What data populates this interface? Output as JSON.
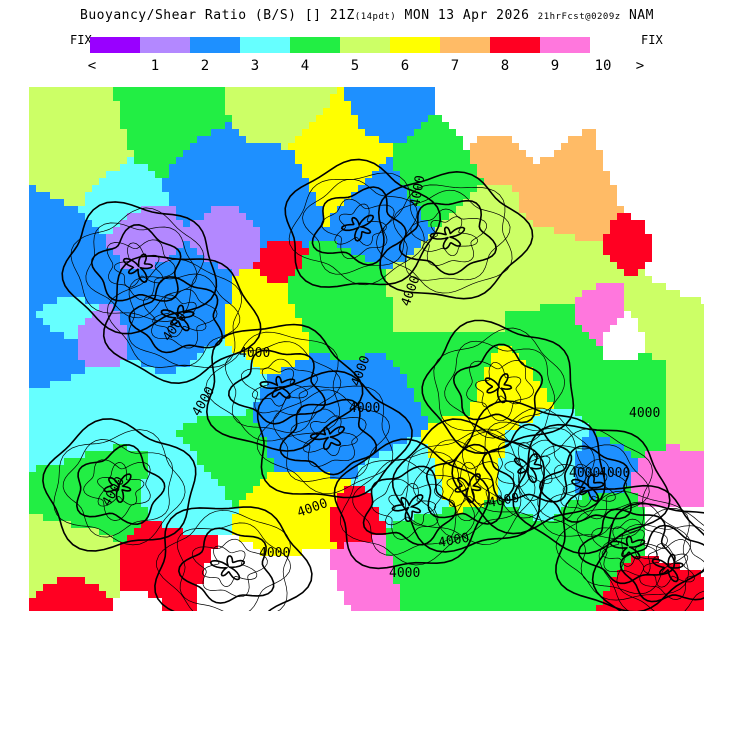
{
  "header": {
    "title_prefix": "Buoyancy/Shear Ratio (B/S) [] 21Z",
    "title_pdt": "(14pdt)",
    "title_date": " MON 13 Apr 2026 ",
    "title_fcst": "21hrFcst@0209z",
    "title_model": " NAM"
  },
  "legend": {
    "fix_left": "FIX",
    "fix_right": "FIX",
    "colors": [
      "#9900ff",
      "#b388ff",
      "#1e90ff",
      "#66ffff",
      "#22ee44",
      "#ccff66",
      "#ffff00",
      "#ffbb66",
      "#ff0022",
      "#ff77dd"
    ],
    "tick_labels": [
      "<",
      "1",
      "2",
      "3",
      "4",
      "5",
      "6",
      "7",
      "8",
      "9",
      "10",
      ">"
    ]
  },
  "map": {
    "contour_labels": [
      "4000",
      "4000",
      "4000",
      "4000",
      "4000",
      "4000",
      "4000",
      "4000",
      "4000",
      "4000",
      "4000",
      "4000",
      "4000",
      "4000",
      "4000",
      "4000"
    ],
    "background_color": "#ffffff",
    "contour_color": "#000000"
  }
}
